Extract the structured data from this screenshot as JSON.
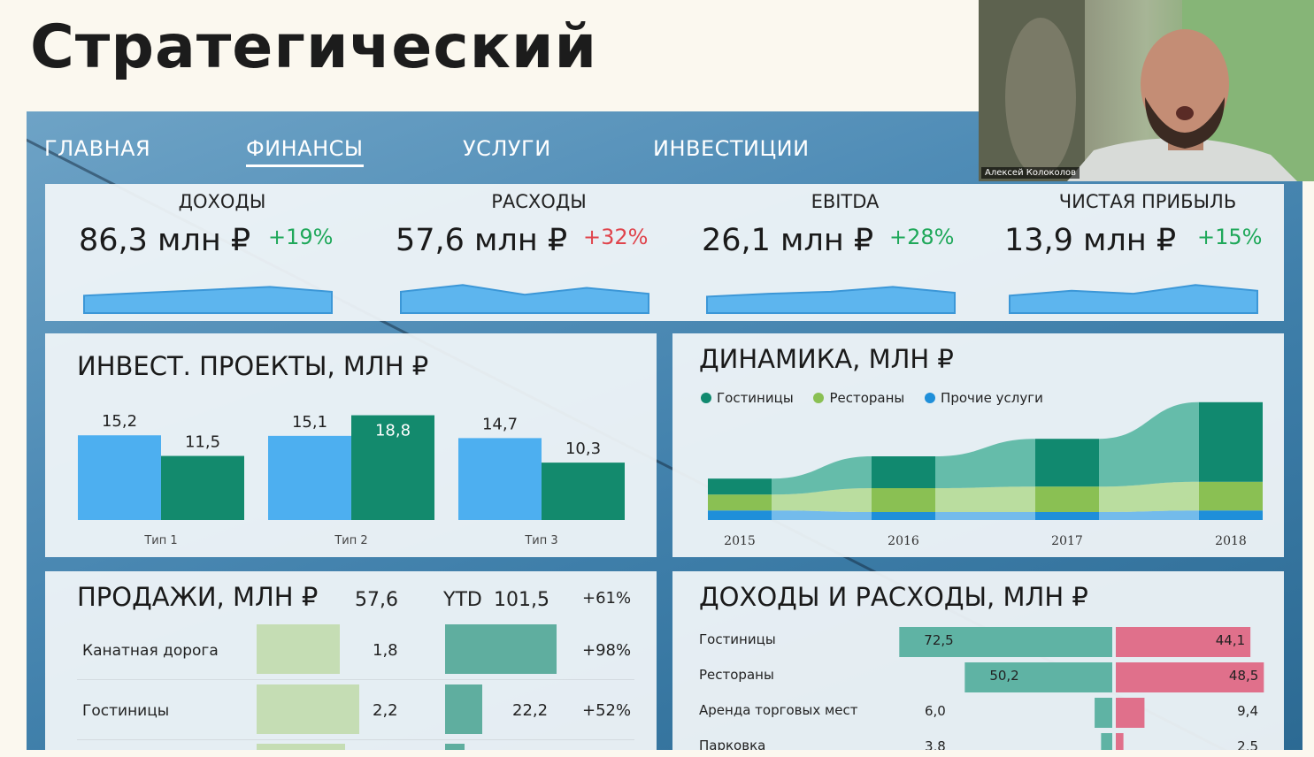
{
  "slide_title": "Стратегический",
  "nav": [
    "ГЛАВНАЯ",
    "ФИНАНСЫ",
    "УСЛУГИ",
    "ИНВЕСТИЦИИ"
  ],
  "nav_active": "ФИНАНСЫ",
  "kpis": [
    {
      "label": "ДОХОДЫ",
      "value": "86,3 млн ₽",
      "change": "+19%",
      "trend": "up",
      "spark": [
        0.35,
        0.5,
        0.65,
        0.8,
        0.55
      ]
    },
    {
      "label": "РАСХОДЫ",
      "value": "57,6 млн ₽",
      "change": "+32%",
      "trend": "down",
      "spark": [
        0.55,
        0.9,
        0.4,
        0.75,
        0.45
      ]
    },
    {
      "label": "EBITDA",
      "value": "26,1 млн ₽",
      "change": "+28%",
      "trend": "up",
      "spark": [
        0.3,
        0.45,
        0.55,
        0.8,
        0.5
      ]
    },
    {
      "label": "ЧИСТАЯ ПРИБЫЛЬ",
      "value": "13,9 млн ₽",
      "change": "+15%",
      "trend": "up",
      "spark": [
        0.35,
        0.6,
        0.45,
        0.9,
        0.6
      ]
    }
  ],
  "invest": {
    "title": "ИНВЕСТ. ПРОЕКТЫ, МЛН ₽",
    "groups": [
      {
        "label": "Тип 1",
        "values": [
          "15,2",
          "11,5"
        ]
      },
      {
        "label": "Тип 2",
        "values": [
          "15,1",
          "18,8"
        ]
      },
      {
        "label": "Тип 3",
        "values": [
          "14,7",
          "10,3"
        ]
      }
    ]
  },
  "dynamics": {
    "title": "ДИНАМИКА, МЛН ₽",
    "legend": [
      {
        "label": "Гостиницы",
        "color": "#11896f"
      },
      {
        "label": "Рестораны",
        "color": "#8ac053"
      },
      {
        "label": "Прочие услуги",
        "color": "#1f8fd9"
      }
    ],
    "years": [
      "2015",
      "2016",
      "2017",
      "2018"
    ]
  },
  "sales": {
    "title": "ПРОДАЖИ, МЛН ₽",
    "total": "57,6",
    "ytd_label": "YTD",
    "ytd": "101,5",
    "change": "+61%",
    "rows": [
      {
        "label": "Канатная дорога",
        "value": "1,8",
        "ytd": "",
        "change": "+98%"
      },
      {
        "label": "Гостиницы",
        "value": "2,2",
        "ytd": "22,2",
        "change": "+52%"
      }
    ]
  },
  "income_expense": {
    "title": "ДОХОДЫ И РАСХОДЫ, МЛН ₽",
    "rows": [
      {
        "label": "Гостиницы",
        "income": "72,5",
        "expense": "44,1"
      },
      {
        "label": "Рестораны",
        "income": "50,2",
        "expense": "48,5"
      },
      {
        "label": "Аренда торговых мест",
        "income": "6,0",
        "expense": "9,4"
      },
      {
        "label": "Парковка",
        "income": "3,8",
        "expense": "2,5"
      }
    ]
  },
  "video": {
    "name": "Алексей Колоколов"
  },
  "chart_data": [
    {
      "type": "bar",
      "title": "ИНВЕСТ. ПРОЕКТЫ, МЛН ₽",
      "categories": [
        "Тип 1",
        "Тип 2",
        "Тип 3"
      ],
      "series": [
        {
          "values": [
            15.2,
            15.1,
            14.7
          ]
        },
        {
          "values": [
            11.5,
            18.8,
            10.3
          ]
        }
      ]
    },
    {
      "type": "area",
      "title": "ДИНАМИКА, МЛН ₽",
      "x": [
        "2015",
        "2016",
        "2017",
        "2018"
      ],
      "series": [
        {
          "name": "Гостиницы",
          "values": [
            1.0,
            2.0,
            3.0,
            5.0
          ]
        },
        {
          "name": "Рестораны",
          "values": [
            1.0,
            1.5,
            1.6,
            1.8
          ]
        },
        {
          "name": "Прочие услуги",
          "values": [
            0.6,
            0.5,
            0.5,
            0.6
          ]
        }
      ]
    },
    {
      "type": "bar",
      "title": "ДОХОДЫ И РАСХОДЫ, МЛН ₽",
      "categories": [
        "Гостиницы",
        "Рестораны",
        "Аренда торговых мест",
        "Парковка"
      ],
      "series": [
        {
          "values": [
            72.5,
            50.2,
            6.0,
            3.8
          ]
        },
        {
          "values": [
            44.1,
            48.5,
            9.4,
            2.5
          ]
        }
      ]
    }
  ]
}
